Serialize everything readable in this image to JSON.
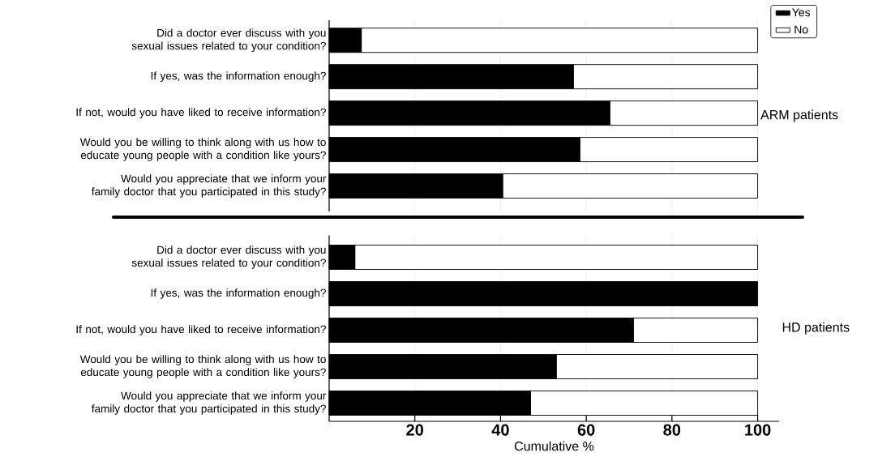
{
  "chart_data": [
    {
      "type": "bar",
      "orientation": "horizontal",
      "stacked": true,
      "categories": [
        "Did a doctor ever discuss with you sexual issues related to your condition?",
        "If yes, was the information enough?",
        "If not, would you have liked to receive information?",
        "Would you be willing to think along with us how to educate young people with a condition like yours?",
        "Would you appreciate that we inform your family doctor that you participated in this study?"
      ],
      "series": [
        {
          "name": "Yes",
          "color": "#000000",
          "values": [
            7.5,
            57,
            65.5,
            58.5,
            40.5
          ]
        },
        {
          "name": "No",
          "color": "#ffffff",
          "values": [
            92.5,
            43,
            34.5,
            41.5,
            59.5
          ]
        }
      ],
      "xlim": [
        0,
        100
      ],
      "xticks": [
        20,
        40,
        60,
        80,
        100
      ],
      "grid": "x",
      "legend": "top right",
      "tick_labels": "y",
      "annotations": [
        "ARM patients"
      ]
    },
    {
      "type": "bar",
      "orientation": "horizontal",
      "stacked": true,
      "categories": [
        "Did a doctor ever discuss with you sexual issues related to your condition?",
        "If yes, was the information enough?",
        "If not, would you have liked to receive information?",
        "Would you be willing to think along with us how to educate young people with a condition like yours?",
        "Would you appreciate that we inform your family doctor that you participated in this study?"
      ],
      "series": [
        {
          "color": "#000000",
          "values": [
            6,
            100,
            71,
            53,
            47
          ]
        },
        {
          "color": "#ffffff",
          "values": [
            94,
            0,
            29,
            47,
            53
          ]
        }
      ],
      "xlim": [
        0,
        105
      ],
      "xticks": [
        20,
        40,
        60,
        80,
        100
      ],
      "grid": "x",
      "xlabel": "Cumulative %",
      "annotations": [
        "HD patients"
      ]
    }
  ]
}
